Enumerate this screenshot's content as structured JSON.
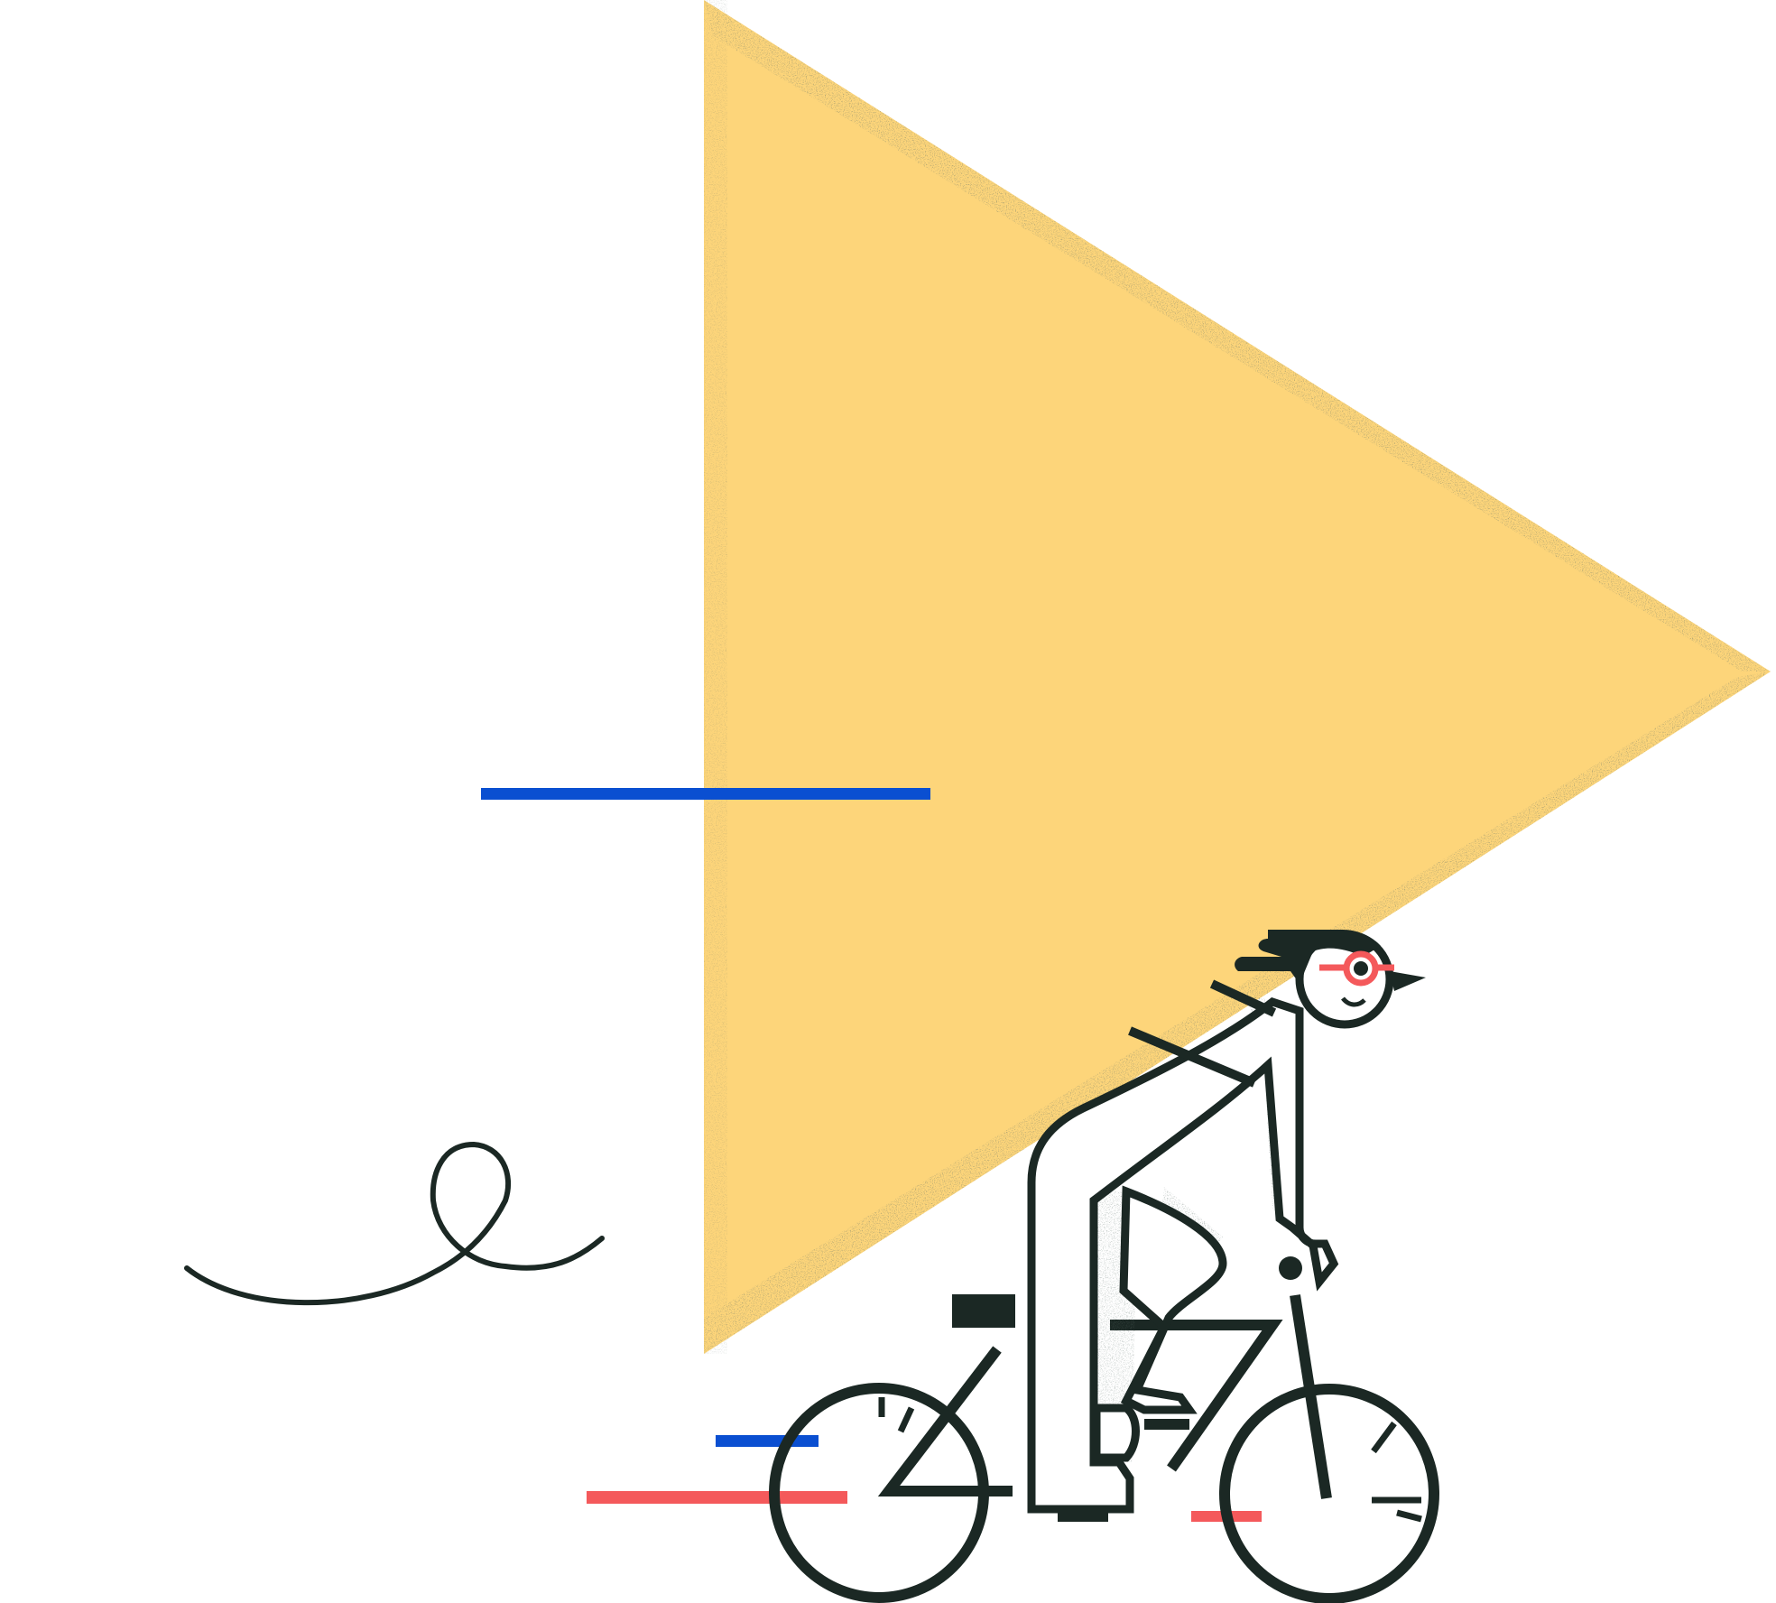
{
  "illustration": {
    "subject": "cyclist-with-play-triangle",
    "colors": {
      "background": "#ffffff",
      "triangle": "#fdd57a",
      "ink": "#1b2824",
      "blue": "#0a4fd1",
      "red": "#f4595b"
    }
  }
}
